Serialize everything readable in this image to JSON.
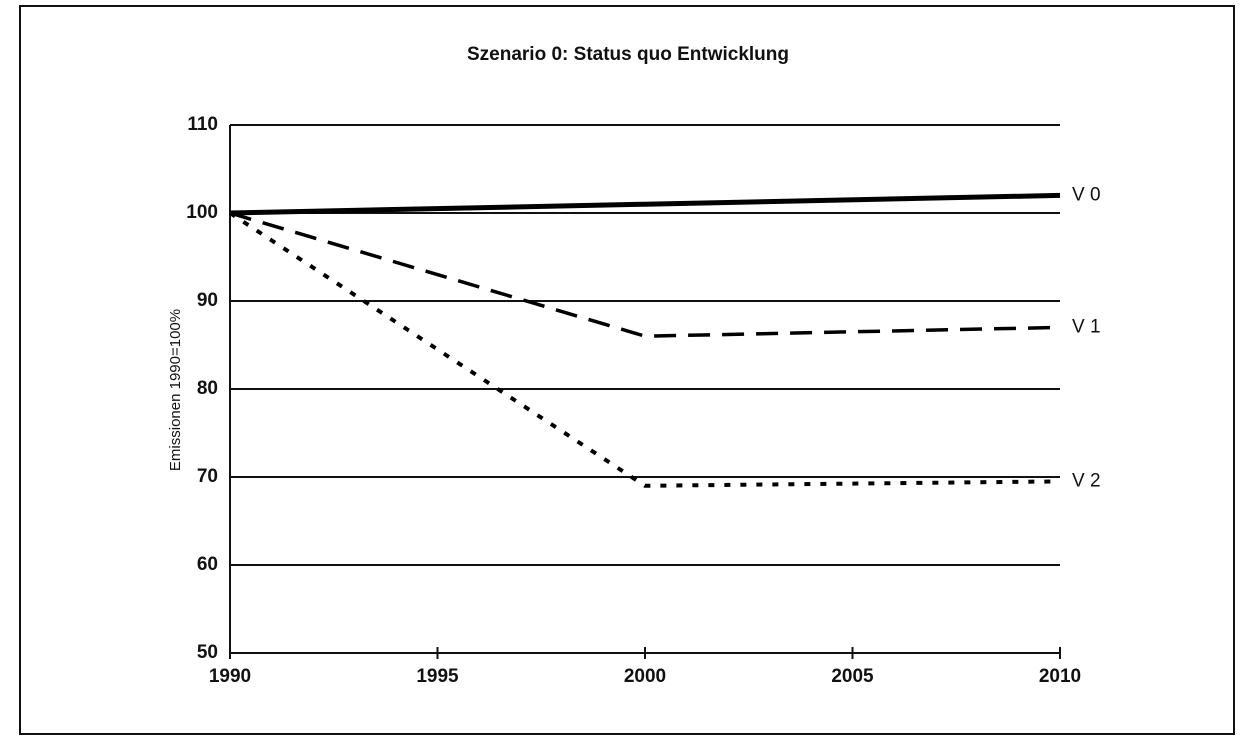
{
  "chart_data": {
    "type": "line",
    "title": "Szenario 0: Status quo Entwicklung",
    "y_label": "Emissionen 1990=100%",
    "x": [
      1990,
      2000,
      2010
    ],
    "series": [
      {
        "name": "V 0",
        "color": "#000000",
        "line_style": "solid",
        "values": [
          100,
          101,
          102
        ]
      },
      {
        "name": "V 1",
        "color": "#000000",
        "line_style": "dashed",
        "values": [
          100,
          86,
          87
        ]
      },
      {
        "name": "V 2",
        "color": "#000000",
        "line_style": "dotted",
        "values": [
          100,
          69,
          69.5
        ]
      }
    ],
    "xlim": [
      1990,
      2010
    ],
    "xticks": [
      1990,
      1995,
      2000,
      2005,
      2010
    ],
    "ylim": [
      50,
      110
    ],
    "yticks": [
      50,
      60,
      70,
      80,
      90,
      100,
      110
    ],
    "grid": true
  }
}
